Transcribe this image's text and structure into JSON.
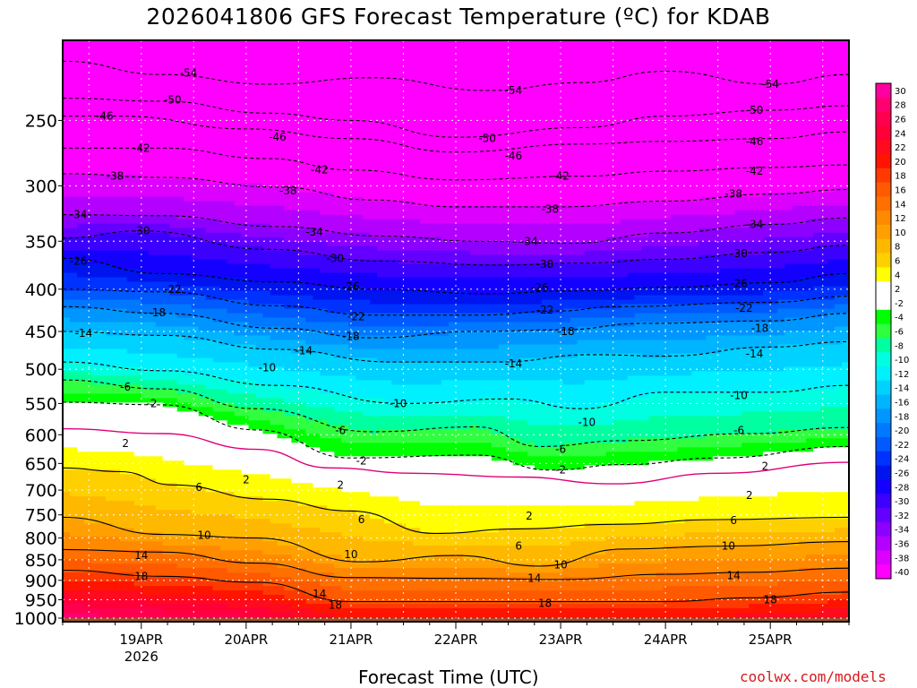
{
  "title": "2026041806 GFS Forecast Temperature (ºC) for KDAB",
  "credit": "coolwx.com/models",
  "chart_data": {
    "type": "heatmap",
    "title": "2026041806 GFS Forecast Temperature (ºC) for KDAB",
    "xlabel": "Forecast Time (UTC)",
    "ylabel": "",
    "x_ticks": [
      {
        "label": "19APR",
        "sublabel": "2026",
        "day": 1
      },
      {
        "label": "20APR",
        "sublabel": "",
        "day": 2
      },
      {
        "label": "21APR",
        "sublabel": "",
        "day": 3
      },
      {
        "label": "22APR",
        "sublabel": "",
        "day": 4
      },
      {
        "label": "23APR",
        "sublabel": "",
        "day": 5
      },
      {
        "label": "24APR",
        "sublabel": "",
        "day": 6
      },
      {
        "label": "25APR",
        "sublabel": "",
        "day": 7
      }
    ],
    "xlim": [
      0.25,
      7.75
    ],
    "y_ticks": [
      250,
      300,
      350,
      400,
      450,
      500,
      550,
      600,
      650,
      700,
      750,
      800,
      850,
      900,
      950,
      1000
    ],
    "ylim": [
      1010,
      200
    ],
    "colorbar": {
      "levels": [
        30,
        28,
        26,
        24,
        22,
        20,
        18,
        16,
        14,
        12,
        10,
        8,
        6,
        4,
        2,
        -2,
        -4,
        -6,
        -8,
        -10,
        -12,
        -14,
        -16,
        -18,
        -20,
        -22,
        -24,
        -26,
        -28,
        -30,
        -32,
        -34,
        -36,
        -38,
        -40
      ],
      "colors": [
        "#ff00a0",
        "#ff0070",
        "#ff0050",
        "#ff0038",
        "#ff0a1e",
        "#ff1400",
        "#ff3a00",
        "#ff5a00",
        "#ff7000",
        "#ff8a00",
        "#ffa000",
        "#ffb800",
        "#ffd000",
        "#ffff00",
        "#ffffff",
        "#ffffff",
        "#00ff00",
        "#30ff40",
        "#00ffa0",
        "#00ffe0",
        "#00f0ff",
        "#00d2ff",
        "#00b4ff",
        "#0096ff",
        "#0078ff",
        "#005aff",
        "#0032ff",
        "#0014f0",
        "#1400ff",
        "#3c00ff",
        "#6400ff",
        "#8c00ff",
        "#b400ff",
        "#dc00ff",
        "#ff00ff"
      ]
    },
    "isotherms": [
      {
        "level": -54,
        "label": "-54",
        "points": [
          [
            0.25,
            212
          ],
          [
            1.2,
            220
          ],
          [
            2.2,
            226
          ],
          [
            3.2,
            222
          ],
          [
            4.3,
            230
          ],
          [
            5.2,
            225
          ],
          [
            6.0,
            218
          ],
          [
            7.0,
            226
          ],
          [
            7.75,
            220
          ]
        ],
        "labels": [
          [
            1.45,
            219
          ],
          [
            4.55,
            230
          ],
          [
            7.0,
            226
          ]
        ]
      },
      {
        "level": -50,
        "label": "-50",
        "points": [
          [
            0.25,
            235
          ],
          [
            1.2,
            237
          ],
          [
            2.2,
            245
          ],
          [
            3.0,
            250
          ],
          [
            4.0,
            262
          ],
          [
            5.2,
            255
          ],
          [
            6.0,
            247
          ],
          [
            7.0,
            243
          ],
          [
            7.75,
            240
          ]
        ],
        "labels": [
          [
            1.3,
            236
          ],
          [
            4.3,
            263
          ],
          [
            6.85,
            243
          ]
        ]
      },
      {
        "level": -46,
        "label": "-46",
        "points": [
          [
            0.25,
            247
          ],
          [
            0.8,
            247
          ],
          [
            2.0,
            256
          ],
          [
            3.0,
            263
          ],
          [
            4.0,
            273
          ],
          [
            5.2,
            267
          ],
          [
            6.0,
            265
          ],
          [
            7.0,
            263
          ],
          [
            7.75,
            258
          ]
        ],
        "labels": [
          [
            0.65,
            247
          ],
          [
            2.3,
            262
          ],
          [
            4.55,
            276
          ],
          [
            6.85,
            265
          ]
        ]
      },
      {
        "level": -42,
        "label": "-42",
        "points": [
          [
            0.25,
            270
          ],
          [
            1.2,
            270
          ],
          [
            2.2,
            278
          ],
          [
            3.0,
            287
          ],
          [
            4.0,
            295
          ],
          [
            5.2,
            292
          ],
          [
            6.0,
            288
          ],
          [
            7.0,
            285
          ],
          [
            7.75,
            283
          ]
        ],
        "labels": [
          [
            1.0,
            270
          ],
          [
            2.7,
            287
          ],
          [
            5.0,
            292
          ],
          [
            6.85,
            288
          ]
        ]
      },
      {
        "level": -38,
        "label": "-38",
        "points": [
          [
            0.25,
            290
          ],
          [
            1.2,
            293
          ],
          [
            2.3,
            301
          ],
          [
            3.2,
            312
          ],
          [
            4.0,
            318
          ],
          [
            5.0,
            318
          ],
          [
            6.0,
            313
          ],
          [
            7.0,
            307
          ],
          [
            7.75,
            303
          ]
        ],
        "labels": [
          [
            0.75,
            292
          ],
          [
            2.4,
            304
          ],
          [
            4.9,
            320
          ],
          [
            6.65,
            307
          ]
        ]
      },
      {
        "level": -34,
        "label": "-34",
        "points": [
          [
            0.25,
            325
          ],
          [
            1.2,
            326
          ],
          [
            2.3,
            336
          ],
          [
            3.3,
            345
          ],
          [
            4.2,
            350
          ],
          [
            5.1,
            352
          ],
          [
            6.0,
            342
          ],
          [
            7.0,
            334
          ],
          [
            7.75,
            328
          ]
        ],
        "labels": [
          [
            0.4,
            325
          ],
          [
            2.65,
            341
          ],
          [
            4.7,
            350
          ],
          [
            6.85,
            334
          ]
        ]
      },
      {
        "level": -30,
        "label": "-30",
        "points": [
          [
            0.25,
            347
          ],
          [
            1.0,
            340
          ],
          [
            2.2,
            358
          ],
          [
            3.3,
            370
          ],
          [
            4.4,
            374
          ],
          [
            5.2,
            372
          ],
          [
            6.0,
            368
          ],
          [
            7.0,
            361
          ],
          [
            7.75,
            354
          ]
        ],
        "labels": [
          [
            1.0,
            340
          ],
          [
            2.85,
            367
          ],
          [
            4.85,
            373
          ],
          [
            6.7,
            362
          ]
        ]
      },
      {
        "level": -26,
        "label": "-26",
        "points": [
          [
            0.25,
            367
          ],
          [
            1.2,
            383
          ],
          [
            2.3,
            392
          ],
          [
            3.2,
            400
          ],
          [
            4.3,
            405
          ],
          [
            5.1,
            402
          ],
          [
            6.0,
            398
          ],
          [
            7.0,
            393
          ],
          [
            7.75,
            383
          ]
        ],
        "labels": [
          [
            0.4,
            370
          ],
          [
            3.0,
            397
          ],
          [
            4.8,
            398
          ],
          [
            6.7,
            394
          ]
        ]
      },
      {
        "level": -22,
        "label": "-22",
        "points": [
          [
            0.25,
            400
          ],
          [
            1.2,
            403
          ],
          [
            2.3,
            419
          ],
          [
            3.2,
            430
          ],
          [
            4.2,
            430
          ],
          [
            5.0,
            425
          ],
          [
            5.5,
            420
          ],
          [
            7.0,
            415
          ],
          [
            7.75,
            408
          ]
        ],
        "labels": [
          [
            1.3,
            400
          ],
          [
            3.05,
            432
          ],
          [
            4.85,
            424
          ],
          [
            6.75,
            422
          ]
        ]
      },
      {
        "level": -18,
        "label": "-18",
        "points": [
          [
            0.25,
            420
          ],
          [
            1.2,
            428
          ],
          [
            2.3,
            446
          ],
          [
            3.2,
            458
          ],
          [
            4.2,
            450
          ],
          [
            5.0,
            448
          ],
          [
            5.8,
            440
          ],
          [
            7.0,
            437
          ],
          [
            7.75,
            428
          ]
        ],
        "labels": [
          [
            1.15,
            427
          ],
          [
            3.0,
            456
          ],
          [
            5.05,
            450
          ],
          [
            6.9,
            446
          ]
        ]
      },
      {
        "level": -14,
        "label": "-14",
        "points": [
          [
            0.25,
            450
          ],
          [
            1.2,
            455
          ],
          [
            2.3,
            473
          ],
          [
            3.4,
            490
          ],
          [
            4.4,
            490
          ],
          [
            5.3,
            480
          ],
          [
            6.0,
            482
          ],
          [
            7.0,
            470
          ],
          [
            7.75,
            463
          ]
        ],
        "labels": [
          [
            0.45,
            452
          ],
          [
            2.55,
            475
          ],
          [
            4.55,
            492
          ],
          [
            6.85,
            479
          ]
        ]
      },
      {
        "level": -10,
        "label": "-10",
        "points": [
          [
            0.25,
            490
          ],
          [
            1.2,
            502
          ],
          [
            2.3,
            523
          ],
          [
            3.5,
            550
          ],
          [
            4.5,
            543
          ],
          [
            5.2,
            558
          ],
          [
            6.0,
            533
          ],
          [
            7.0,
            533
          ],
          [
            7.75,
            523
          ]
        ],
        "labels": [
          [
            2.2,
            498
          ],
          [
            3.45,
            550
          ],
          [
            5.25,
            580
          ],
          [
            6.7,
            538
          ]
        ]
      },
      {
        "level": -6,
        "label": "-6",
        "points": [
          [
            0.25,
            515
          ],
          [
            1.2,
            528
          ],
          [
            2.1,
            558
          ],
          [
            3.2,
            595
          ],
          [
            4.2,
            587
          ],
          [
            4.8,
            620
          ],
          [
            5.6,
            610
          ],
          [
            6.8,
            598
          ],
          [
            7.75,
            588
          ]
        ],
        "labels": [
          [
            0.85,
            525
          ],
          [
            2.9,
            593
          ],
          [
            5.0,
            625
          ],
          [
            6.7,
            593
          ]
        ]
      },
      {
        "level": -2,
        "label": "-2",
        "points": [
          [
            0.25,
            548
          ],
          [
            1.2,
            552
          ],
          [
            2.1,
            592
          ],
          [
            3.0,
            640
          ],
          [
            4.2,
            635
          ],
          [
            4.9,
            662
          ],
          [
            5.6,
            652
          ],
          [
            6.5,
            640
          ],
          [
            7.75,
            620
          ]
        ],
        "labels": [
          [
            1.1,
            550
          ],
          [
            3.1,
            645
          ],
          [
            5.0,
            662
          ]
        ]
      },
      {
        "level": 2,
        "label": "2",
        "points": [
          [
            0.25,
            590
          ],
          [
            1.2,
            598
          ],
          [
            2.1,
            625
          ],
          [
            2.8,
            658
          ],
          [
            3.6,
            668
          ],
          [
            4.6,
            675
          ],
          [
            5.5,
            688
          ],
          [
            6.5,
            668
          ],
          [
            7.75,
            648
          ]
        ],
        "labels": [
          [
            0.85,
            615
          ],
          [
            2.0,
            680
          ],
          [
            2.9,
            690
          ],
          [
            4.7,
            752
          ],
          [
            6.8,
            710
          ],
          [
            6.95,
            655
          ]
        ]
      },
      {
        "level": 6,
        "label": "6",
        "points": [
          [
            0.25,
            658
          ],
          [
            0.8,
            665
          ],
          [
            1.3,
            690
          ],
          [
            2.2,
            718
          ],
          [
            3.0,
            742
          ],
          [
            3.8,
            790
          ],
          [
            4.6,
            780
          ],
          [
            5.5,
            770
          ],
          [
            6.5,
            760
          ],
          [
            7.75,
            755
          ]
        ],
        "labels": [
          [
            1.55,
            695
          ],
          [
            3.1,
            760
          ],
          [
            4.6,
            818
          ],
          [
            6.65,
            762
          ]
        ]
      },
      {
        "level": 10,
        "label": "10",
        "points": [
          [
            0.25,
            755
          ],
          [
            1.2,
            792
          ],
          [
            2.1,
            800
          ],
          [
            3.1,
            855
          ],
          [
            4.0,
            840
          ],
          [
            4.8,
            865
          ],
          [
            5.6,
            825
          ],
          [
            6.6,
            818
          ],
          [
            7.75,
            808
          ]
        ],
        "labels": [
          [
            1.6,
            794
          ],
          [
            3.0,
            838
          ],
          [
            5.0,
            862
          ],
          [
            6.6,
            818
          ]
        ]
      },
      {
        "level": 14,
        "label": "14",
        "points": [
          [
            0.25,
            826
          ],
          [
            1.2,
            832
          ],
          [
            2.1,
            858
          ],
          [
            3.0,
            893
          ],
          [
            4.0,
            895
          ],
          [
            5.0,
            898
          ],
          [
            6.0,
            885
          ],
          [
            6.8,
            880
          ],
          [
            7.75,
            870
          ]
        ],
        "labels": [
          [
            1.0,
            840
          ],
          [
            2.7,
            935
          ],
          [
            4.75,
            895
          ],
          [
            6.65,
            888
          ]
        ]
      },
      {
        "level": 18,
        "label": "18",
        "points": [
          [
            0.25,
            875
          ],
          [
            1.2,
            890
          ],
          [
            2.1,
            905
          ],
          [
            3.0,
            955
          ],
          [
            4.0,
            955
          ],
          [
            5.0,
            955
          ],
          [
            6.0,
            955
          ],
          [
            6.8,
            945
          ],
          [
            7.75,
            930
          ]
        ],
        "labels": [
          [
            1.0,
            890
          ],
          [
            2.85,
            965
          ],
          [
            4.85,
            960
          ],
          [
            7.0,
            950
          ]
        ]
      }
    ]
  }
}
